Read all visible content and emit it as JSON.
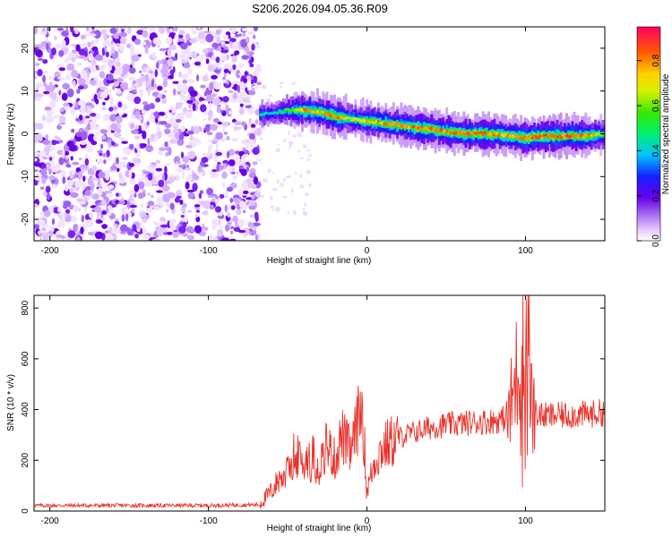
{
  "page_title": "S206.2026.094.05.36.R09",
  "colorbar": {
    "label": "Normalized spectral amplitude",
    "ticks": [
      "0.0",
      "0.2",
      "0.4",
      "0.6",
      "0.8"
    ],
    "tick_values": [
      0.0,
      0.2,
      0.4,
      0.6,
      0.8
    ],
    "range": [
      0,
      0.95
    ]
  },
  "chart_data": [
    {
      "type": "heatmap",
      "title": "",
      "xlabel": "Height of straight line (km)",
      "ylabel": "Frequency (Hz)",
      "xlim": [
        -210,
        150
      ],
      "ylim": [
        -25,
        25
      ],
      "xticks": [
        -200,
        -100,
        0,
        100
      ],
      "xtick_labels": [
        "-200",
        "-100",
        "0",
        "100"
      ],
      "yticks": [
        -20,
        -10,
        0,
        10,
        20
      ],
      "ytick_labels": [
        "-20",
        "-10",
        "0",
        "10",
        "20"
      ],
      "noise_region_x": [
        -210,
        -68
      ],
      "signal_track": {
        "x": [
          -68,
          -60,
          -50,
          -40,
          -30,
          -20,
          -10,
          0,
          10,
          20,
          30,
          40,
          50,
          60,
          70,
          80,
          90,
          100,
          110,
          120,
          130,
          140,
          150
        ],
        "frequency_hz": [
          4.5,
          4.8,
          5.5,
          5.5,
          5.0,
          4.0,
          3.5,
          3.0,
          2.5,
          2.0,
          1.5,
          1.0,
          0.5,
          0.0,
          0.0,
          0.0,
          -0.5,
          -1.0,
          -0.5,
          -0.5,
          -0.5,
          -0.5,
          0.0
        ],
        "peak_amplitude": [
          0.5,
          0.45,
          0.6,
          0.9,
          0.85,
          0.95,
          0.7,
          0.85,
          0.9,
          0.85,
          0.95,
          0.95,
          0.9,
          0.95,
          0.95,
          0.9,
          0.85,
          0.95,
          0.95,
          0.95,
          0.95,
          0.9,
          0.6
        ]
      }
    },
    {
      "type": "line",
      "title": "",
      "xlabel": "Height of straight line (km)",
      "ylabel": "SNR (10 * v/v)",
      "xlim": [
        -210,
        150
      ],
      "ylim": [
        0,
        850
      ],
      "xticks": [
        -200,
        -100,
        0,
        100
      ],
      "xtick_labels": [
        "-200",
        "-100",
        "0",
        "100"
      ],
      "yticks": [
        0,
        200,
        400,
        600,
        800
      ],
      "ytick_labels": [
        "0",
        "200",
        "400",
        "600",
        "800"
      ],
      "series": [
        {
          "name": "SNR",
          "color": "#e8332b",
          "x": [
            -210,
            -100,
            -68,
            -60,
            -55,
            -50,
            -46,
            -40,
            -36,
            -30,
            -26,
            -20,
            -16,
            -10,
            -6,
            -3,
            0,
            5,
            10,
            20,
            30,
            40,
            50,
            60,
            70,
            80,
            85,
            90,
            95,
            98,
            100,
            102,
            104,
            110,
            120,
            130,
            140,
            150
          ],
          "values": [
            22,
            22,
            25,
            80,
            130,
            150,
            230,
            180,
            240,
            170,
            270,
            200,
            300,
            230,
            350,
            420,
            80,
            200,
            250,
            290,
            310,
            330,
            340,
            345,
            350,
            355,
            360,
            380,
            560,
            700,
            520,
            840,
            400,
            375,
            375,
            380,
            380,
            390
          ]
        }
      ]
    }
  ]
}
